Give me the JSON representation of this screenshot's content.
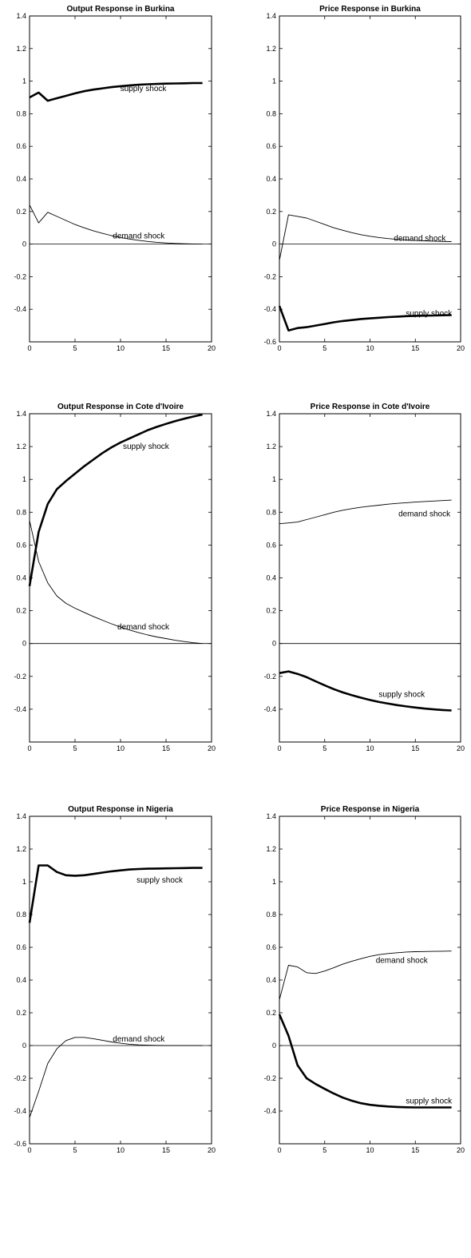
{
  "chart_data": [
    {
      "type": "line",
      "title": "Output Response in Burkina",
      "xlabel": "",
      "ylabel": "",
      "xlim": [
        0,
        20
      ],
      "ylim": [
        -0.6,
        1.4
      ],
      "xticks": [
        0,
        5,
        10,
        15,
        20
      ],
      "yticks": [
        -0.4,
        -0.2,
        0,
        0.2,
        0.4,
        0.6,
        0.8,
        1,
        1.2,
        1.4
      ],
      "zero_line": true,
      "grid": false,
      "x": [
        0,
        1,
        2,
        3,
        4,
        5,
        6,
        7,
        8,
        9,
        10,
        11,
        12,
        13,
        14,
        15,
        16,
        17,
        18,
        19
      ],
      "series": [
        {
          "name": "supply shock",
          "style": "thick",
          "values": [
            0.9,
            0.93,
            0.88,
            0.895,
            0.91,
            0.925,
            0.938,
            0.948,
            0.956,
            0.963,
            0.969,
            0.974,
            0.978,
            0.981,
            0.983,
            0.985,
            0.986,
            0.987,
            0.988,
            0.988
          ]
        },
        {
          "name": "demand shock",
          "style": "thin",
          "values": [
            0.24,
            0.13,
            0.195,
            0.17,
            0.145,
            0.12,
            0.1,
            0.082,
            0.066,
            0.052,
            0.04,
            0.031,
            0.023,
            0.016,
            0.011,
            0.007,
            0.004,
            0.002,
            0.001,
            0.0
          ]
        }
      ],
      "annotations": [
        {
          "text": "supply shock",
          "x": 12.5,
          "y": 0.955
        },
        {
          "text": "demand shock",
          "x": 12.0,
          "y": 0.05
        }
      ]
    },
    {
      "type": "line",
      "title": "Price Response in Burkina",
      "xlabel": "",
      "ylabel": "",
      "xlim": [
        0,
        20
      ],
      "ylim": [
        -0.6,
        1.4
      ],
      "xticks": [
        0,
        5,
        10,
        15,
        20
      ],
      "yticks": [
        -0.6,
        -0.4,
        -0.2,
        0,
        0.2,
        0.4,
        0.6,
        0.8,
        1,
        1.2,
        1.4
      ],
      "zero_line": true,
      "grid": false,
      "x": [
        0,
        1,
        2,
        3,
        4,
        5,
        6,
        7,
        8,
        9,
        10,
        11,
        12,
        13,
        14,
        15,
        16,
        17,
        18,
        19
      ],
      "series": [
        {
          "name": "demand shock",
          "style": "thin",
          "values": [
            -0.1,
            0.18,
            0.17,
            0.16,
            0.14,
            0.12,
            0.1,
            0.085,
            0.07,
            0.058,
            0.048,
            0.04,
            0.034,
            0.029,
            0.025,
            0.022,
            0.02,
            0.018,
            0.016,
            0.015
          ]
        },
        {
          "name": "supply shock",
          "style": "thick",
          "values": [
            -0.38,
            -0.53,
            -0.515,
            -0.51,
            -0.5,
            -0.49,
            -0.48,
            -0.472,
            -0.466,
            -0.46,
            -0.456,
            -0.452,
            -0.448,
            -0.445,
            -0.442,
            -0.44,
            -0.439,
            -0.438,
            -0.437,
            -0.436
          ]
        }
      ],
      "annotations": [
        {
          "text": "demand shock",
          "x": 15.5,
          "y": 0.035
        },
        {
          "text": "supply shock",
          "x": 16.5,
          "y": -0.425
        }
      ]
    },
    {
      "type": "line",
      "title": "Output Response in Cote d'Ivoire",
      "xlabel": "",
      "ylabel": "",
      "xlim": [
        0,
        20
      ],
      "ylim": [
        -0.6,
        1.4
      ],
      "xticks": [
        0,
        5,
        10,
        15,
        20
      ],
      "yticks": [
        -0.4,
        -0.2,
        0,
        0.2,
        0.4,
        0.6,
        0.8,
        1,
        1.2,
        1.4
      ],
      "zero_line": true,
      "grid": false,
      "x": [
        0,
        1,
        2,
        3,
        4,
        5,
        6,
        7,
        8,
        9,
        10,
        11,
        12,
        13,
        14,
        15,
        16,
        17,
        18,
        19
      ],
      "series": [
        {
          "name": "supply shock",
          "style": "thick",
          "values": [
            0.35,
            0.68,
            0.85,
            0.94,
            0.99,
            1.035,
            1.08,
            1.12,
            1.16,
            1.195,
            1.225,
            1.25,
            1.275,
            1.3,
            1.32,
            1.338,
            1.355,
            1.37,
            1.383,
            1.395
          ]
        },
        {
          "name": "demand shock",
          "style": "thin",
          "values": [
            0.75,
            0.5,
            0.37,
            0.29,
            0.245,
            0.215,
            0.19,
            0.165,
            0.142,
            0.12,
            0.1,
            0.082,
            0.066,
            0.052,
            0.04,
            0.03,
            0.02,
            0.012,
            0.005,
            0.0
          ]
        }
      ],
      "annotations": [
        {
          "text": "supply shock",
          "x": 12.8,
          "y": 1.2
        },
        {
          "text": "demand shock",
          "x": 12.5,
          "y": 0.1
        }
      ]
    },
    {
      "type": "line",
      "title": "Price Response in Cote d'Ivoire",
      "xlabel": "",
      "ylabel": "",
      "xlim": [
        0,
        20
      ],
      "ylim": [
        -0.6,
        1.4
      ],
      "xticks": [
        0,
        5,
        10,
        15,
        20
      ],
      "yticks": [
        -0.4,
        -0.2,
        0,
        0.2,
        0.4,
        0.6,
        0.8,
        1,
        1.2,
        1.4
      ],
      "zero_line": true,
      "grid": false,
      "x": [
        0,
        1,
        2,
        3,
        4,
        5,
        6,
        7,
        8,
        9,
        10,
        11,
        12,
        13,
        14,
        15,
        16,
        17,
        18,
        19
      ],
      "series": [
        {
          "name": "demand shock",
          "style": "thin",
          "values": [
            0.73,
            0.735,
            0.74,
            0.755,
            0.77,
            0.785,
            0.8,
            0.812,
            0.822,
            0.83,
            0.837,
            0.843,
            0.849,
            0.854,
            0.858,
            0.862,
            0.865,
            0.868,
            0.871,
            0.874
          ]
        },
        {
          "name": "supply shock",
          "style": "thick",
          "values": [
            -0.18,
            -0.17,
            -0.185,
            -0.205,
            -0.23,
            -0.255,
            -0.278,
            -0.298,
            -0.315,
            -0.33,
            -0.344,
            -0.356,
            -0.366,
            -0.375,
            -0.383,
            -0.39,
            -0.396,
            -0.401,
            -0.405,
            -0.408
          ]
        }
      ],
      "annotations": [
        {
          "text": "demand shock",
          "x": 16.0,
          "y": 0.79
        },
        {
          "text": "supply shock",
          "x": 13.5,
          "y": -0.31
        }
      ]
    },
    {
      "type": "line",
      "title": "Output Response in Nigeria",
      "xlabel": "",
      "ylabel": "",
      "xlim": [
        0,
        20
      ],
      "ylim": [
        -0.6,
        1.4
      ],
      "xticks": [
        0,
        5,
        10,
        15,
        20
      ],
      "yticks": [
        -0.6,
        -0.4,
        -0.2,
        0,
        0.2,
        0.4,
        0.6,
        0.8,
        1,
        1.2,
        1.4
      ],
      "zero_line": true,
      "grid": false,
      "x": [
        0,
        1,
        2,
        3,
        4,
        5,
        6,
        7,
        8,
        9,
        10,
        11,
        12,
        13,
        14,
        15,
        16,
        17,
        18,
        19
      ],
      "series": [
        {
          "name": "supply shock",
          "style": "thick",
          "values": [
            0.75,
            1.1,
            1.1,
            1.06,
            1.04,
            1.037,
            1.04,
            1.048,
            1.056,
            1.064,
            1.07,
            1.075,
            1.078,
            1.08,
            1.081,
            1.082,
            1.083,
            1.084,
            1.085,
            1.085
          ]
        },
        {
          "name": "demand shock",
          "style": "thin",
          "values": [
            -0.44,
            -0.28,
            -0.11,
            -0.02,
            0.03,
            0.05,
            0.05,
            0.042,
            0.032,
            0.022,
            0.014,
            0.008,
            0.004,
            0.002,
            0.001,
            0.0,
            0.0,
            0.0,
            0.0,
            0.0
          ]
        }
      ],
      "annotations": [
        {
          "text": "supply shock",
          "x": 14.3,
          "y": 1.01
        },
        {
          "text": "demand shock",
          "x": 12.0,
          "y": 0.04
        }
      ]
    },
    {
      "type": "line",
      "title": "Price Response in Nigeria",
      "xlabel": "",
      "ylabel": "",
      "xlim": [
        0,
        20
      ],
      "ylim": [
        -0.6,
        1.4
      ],
      "xticks": [
        0,
        5,
        10,
        15,
        20
      ],
      "yticks": [
        -0.4,
        -0.2,
        0,
        0.2,
        0.4,
        0.6,
        0.8,
        1,
        1.2,
        1.4
      ],
      "zero_line": true,
      "grid": false,
      "x": [
        0,
        1,
        2,
        3,
        4,
        5,
        6,
        7,
        8,
        9,
        10,
        11,
        12,
        13,
        14,
        15,
        16,
        17,
        18,
        19
      ],
      "series": [
        {
          "name": "demand shock",
          "style": "thin",
          "values": [
            0.28,
            0.49,
            0.48,
            0.445,
            0.44,
            0.455,
            0.475,
            0.497,
            0.515,
            0.53,
            0.545,
            0.555,
            0.562,
            0.567,
            0.571,
            0.573,
            0.574,
            0.575,
            0.576,
            0.577
          ]
        },
        {
          "name": "supply shock",
          "style": "thick",
          "values": [
            0.19,
            0.06,
            -0.12,
            -0.2,
            -0.235,
            -0.265,
            -0.293,
            -0.318,
            -0.337,
            -0.352,
            -0.362,
            -0.368,
            -0.372,
            -0.375,
            -0.377,
            -0.378,
            -0.378,
            -0.378,
            -0.378,
            -0.378
          ]
        }
      ],
      "annotations": [
        {
          "text": "demand shock",
          "x": 13.5,
          "y": 0.52
        },
        {
          "text": "supply shock",
          "x": 16.5,
          "y": -0.34
        }
      ]
    }
  ]
}
